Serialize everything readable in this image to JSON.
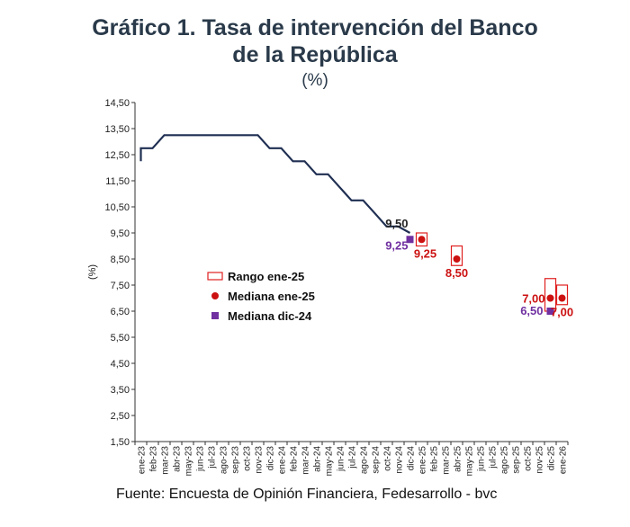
{
  "title_line1": "Gráfico 1. Tasa de intervención del Banco",
  "title_line2": "de la República",
  "subtitle": "(%)",
  "source": "Fuente: Encuesta de Opinión Financiera, Fedesarrollo - bvc",
  "colors": {
    "line": "#1f2f52",
    "range": "#e02020",
    "median_jan": "#cc1111",
    "median_dec": "#7030a0",
    "label_dark": "#222222"
  },
  "chart_data": {
    "type": "line",
    "ylabel": "(%)",
    "ylim": [
      1.5,
      14.5
    ],
    "yticks": [
      1.5,
      2.5,
      3.5,
      4.5,
      5.5,
      6.5,
      7.5,
      8.5,
      9.5,
      10.5,
      11.5,
      12.5,
      13.5,
      14.5
    ],
    "ytick_labels": [
      "1,50",
      "2,50",
      "3,50",
      "4,50",
      "5,50",
      "6,50",
      "7,50",
      "8,50",
      "9,50",
      "10,50",
      "11,50",
      "12,50",
      "13,50",
      "14,50"
    ],
    "categories": [
      "ene-23",
      "feb-23",
      "mar-23",
      "abr-23",
      "may-23",
      "jun-23",
      "jul-23",
      "ago-23",
      "sep-23",
      "oct-23",
      "nov-23",
      "dic-23",
      "ene-24",
      "feb-24",
      "mar-24",
      "abr-24",
      "may-24",
      "jun-24",
      "jul-24",
      "ago-24",
      "sep-24",
      "oct-24",
      "nov-24",
      "dic-24",
      "ene-25",
      "feb-25",
      "mar-25",
      "abr-25",
      "may-25",
      "jun-25",
      "jul-25",
      "ago-25",
      "sep-25",
      "oct-25",
      "nov-25",
      "dic-25",
      "ene-26"
    ],
    "series": [
      {
        "type": "line",
        "steps": [
          {
            "x": "ene-23",
            "y": 12.25
          },
          {
            "x": "ene-23",
            "y": 12.75
          },
          {
            "x": "feb-23",
            "y": 12.75
          },
          {
            "x": "mar-23",
            "y": 13.25
          },
          {
            "x": "nov-23",
            "y": 13.25
          },
          {
            "x": "dic-23",
            "y": 12.75
          },
          {
            "x": "ene-24",
            "y": 12.75
          },
          {
            "x": "feb-24",
            "y": 12.25
          },
          {
            "x": "mar-24",
            "y": 12.25
          },
          {
            "x": "abr-24",
            "y": 11.75
          },
          {
            "x": "may-24",
            "y": 11.75
          },
          {
            "x": "jun-24",
            "y": 11.25
          },
          {
            "x": "jul-24",
            "y": 10.75
          },
          {
            "x": "ago-24",
            "y": 10.75
          },
          {
            "x": "sep-24",
            "y": 10.25
          },
          {
            "x": "oct-24",
            "y": 9.75
          },
          {
            "x": "nov-24",
            "y": 9.75
          },
          {
            "x": "dic-24",
            "y": 9.5
          }
        ]
      },
      {
        "name": "Rango ene-25",
        "type": "range",
        "values": [
          {
            "x": "ene-25",
            "low": 9.0,
            "high": 9.5
          },
          {
            "x": "abr-25",
            "low": 8.25,
            "high": 9.0
          },
          {
            "x": "dic-25",
            "low": 6.5,
            "high": 7.75
          },
          {
            "x": "ene-26",
            "low": 6.75,
            "high": 7.5
          }
        ]
      },
      {
        "name": "Mediana ene-25",
        "type": "scatter",
        "values": [
          {
            "x": "ene-25",
            "y": 9.25
          },
          {
            "x": "abr-25",
            "y": 8.5
          },
          {
            "x": "dic-25",
            "y": 7.0
          },
          {
            "x": "ene-26",
            "y": 7.0
          }
        ]
      },
      {
        "name": "Mediana dic-24",
        "type": "scatter",
        "values": [
          {
            "x": "dic-24",
            "y": 9.25
          },
          {
            "x": "dic-25",
            "y": 6.5
          }
        ]
      }
    ],
    "annotations": [
      {
        "text": "9,50",
        "x": "dic-24",
        "y": 9.5,
        "color": "label_dark"
      },
      {
        "text": "9,25",
        "x": "dic-24",
        "y": 9.25,
        "color": "median_dec"
      },
      {
        "text": "9,25",
        "x": "ene-25",
        "y": 9.25,
        "color": "median_jan"
      },
      {
        "text": "8,50",
        "x": "abr-25",
        "y": 8.5,
        "color": "median_jan"
      },
      {
        "text": "7,00",
        "x": "dic-25",
        "y": 7.0,
        "color": "median_jan"
      },
      {
        "text": "6,50",
        "x": "dic-25",
        "y": 6.5,
        "color": "median_dec"
      },
      {
        "text": "7,00",
        "x": "ene-26",
        "y": 7.0,
        "color": "median_jan"
      }
    ],
    "legend": [
      {
        "label": "Rango ene-25",
        "marker": "range"
      },
      {
        "label": "Mediana ene-25",
        "marker": "circle"
      },
      {
        "label": "Mediana dic-24",
        "marker": "square"
      }
    ],
    "legend_placement": "center-left",
    "grid": false
  }
}
